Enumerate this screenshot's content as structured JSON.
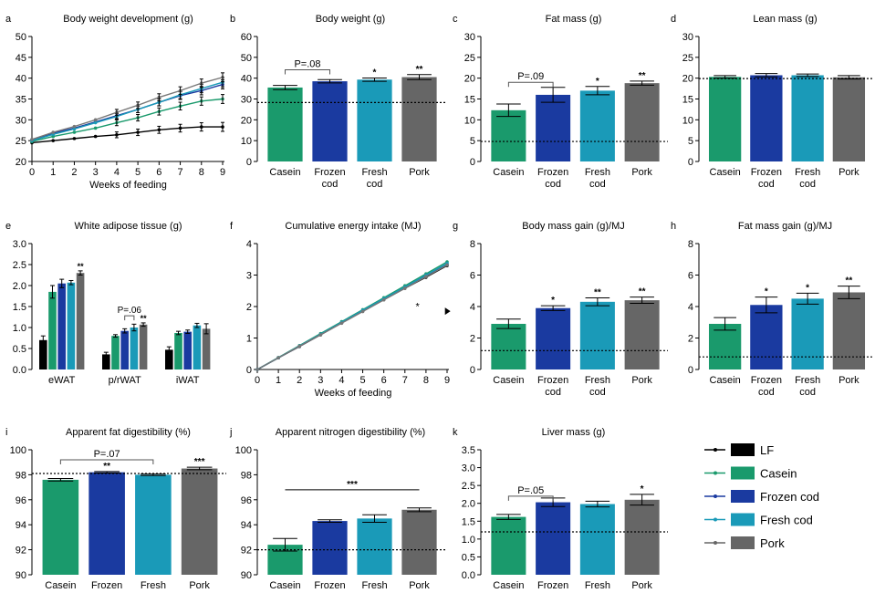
{
  "colors": {
    "lf": "#000000",
    "casein": "#1a9a6c",
    "frozen": "#1a3aa0",
    "fresh": "#1a9ab8",
    "pork": "#666666"
  },
  "chart_data": [
    {
      "id": "a",
      "panel": "a",
      "type": "line",
      "title": "Body weight development (g)",
      "xlabel": "Weeks of feeding",
      "x": [
        0,
        1,
        2,
        3,
        4,
        5,
        6,
        7,
        8,
        9
      ],
      "xticks": [
        "0",
        "1",
        "2",
        "3",
        "4",
        "5",
        "6",
        "7",
        "8",
        "9"
      ],
      "ylim": [
        20,
        50
      ],
      "yticks": [
        "20",
        "25",
        "30",
        "35",
        "40",
        "45",
        "50"
      ],
      "series": [
        {
          "name": "LF",
          "color": "#000000",
          "values": [
            24.5,
            25,
            25.5,
            26,
            26.4,
            27,
            27.6,
            28,
            28.3,
            28.3
          ]
        },
        {
          "name": "Casein",
          "color": "#1a9a6c",
          "values": [
            24.8,
            26,
            27,
            28,
            29.3,
            30.5,
            32,
            33.3,
            34.5,
            35
          ]
        },
        {
          "name": "Frozen cod",
          "color": "#1a3aa0",
          "values": [
            25.2,
            26.8,
            28,
            29.5,
            31,
            32.5,
            34.2,
            35.8,
            37,
            38.5
          ]
        },
        {
          "name": "Fresh cod",
          "color": "#1a9ab8",
          "values": [
            25,
            26.5,
            27.8,
            29.3,
            30.8,
            32.5,
            34.2,
            36,
            37.5,
            39
          ]
        },
        {
          "name": "Pork",
          "color": "#777777",
          "values": [
            25.3,
            27,
            28.4,
            30,
            31.8,
            33.5,
            35.4,
            37,
            38.8,
            40.2
          ]
        }
      ]
    },
    {
      "id": "b",
      "panel": "b",
      "type": "bar",
      "title": "Body weight (g)",
      "categories": [
        "Casein",
        "Frozen\ncod",
        "Fresh\ncod",
        "Pork"
      ],
      "values": [
        35.5,
        38.5,
        39.3,
        40.5
      ],
      "errors": [
        1,
        0.8,
        0.8,
        1.2
      ],
      "colors": [
        "#1a9a6c",
        "#1a3aa0",
        "#1a9ab8",
        "#666666"
      ],
      "ylim": [
        0,
        60
      ],
      "yticks": [
        "0",
        "10",
        "20",
        "30",
        "40",
        "50",
        "60"
      ],
      "reference_line": 28.3,
      "significance": [
        "",
        "",
        "*",
        "**"
      ],
      "comparison": {
        "label": "P=.08",
        "from": 0,
        "to": 1,
        "y": 44
      }
    },
    {
      "id": "c",
      "panel": "c",
      "type": "bar",
      "title": "Fat mass (g)",
      "categories": [
        "Casein",
        "Frozen\ncod",
        "Fresh\ncod",
        "Pork"
      ],
      "values": [
        12.3,
        16,
        17,
        18.8
      ],
      "errors": [
        1.5,
        1.8,
        1,
        0.5
      ],
      "colors": [
        "#1a9a6c",
        "#1a3aa0",
        "#1a9ab8",
        "#666666"
      ],
      "ylim": [
        0,
        30
      ],
      "yticks": [
        "0",
        "5",
        "10",
        "15",
        "20",
        "25",
        "30"
      ],
      "reference_line": 4.8,
      "significance": [
        "",
        "",
        "*",
        "**"
      ],
      "comparison": {
        "label": "P=.09",
        "from": 0,
        "to": 1,
        "y": 19
      }
    },
    {
      "id": "d",
      "panel": "d",
      "type": "bar",
      "title": "Lean mass (g)",
      "categories": [
        "Casein",
        "Frozen\ncod",
        "Fresh\ncod",
        "Pork"
      ],
      "values": [
        20.3,
        20.7,
        20.7,
        20.2
      ],
      "errors": [
        0.3,
        0.4,
        0.3,
        0.4
      ],
      "colors": [
        "#1a9a6c",
        "#1a3aa0",
        "#1a9ab8",
        "#666666"
      ],
      "ylim": [
        0,
        30
      ],
      "yticks": [
        "0",
        "5",
        "10",
        "15",
        "20",
        "25",
        "30"
      ],
      "reference_line": 19.9,
      "significance": [
        "",
        "",
        "",
        ""
      ]
    },
    {
      "id": "e",
      "panel": "e",
      "type": "bar",
      "title": "White adipose tissue (g)",
      "groups": [
        "eWAT",
        "p/rWAT",
        "iWAT"
      ],
      "group_series": [
        "LF",
        "Casein",
        "Frozen cod",
        "Fresh cod",
        "Pork"
      ],
      "colors": [
        "#000000",
        "#1a9a6c",
        "#1a3aa0",
        "#1a9ab8",
        "#666666"
      ],
      "values": [
        [
          0.7,
          1.85,
          2.05,
          2.07,
          2.3
        ],
        [
          0.36,
          0.8,
          0.92,
          1.0,
          1.07
        ],
        [
          0.47,
          0.87,
          0.9,
          1.05,
          0.97
        ]
      ],
      "errors": [
        [
          0.1,
          0.15,
          0.1,
          0.05,
          0.05
        ],
        [
          0.05,
          0.03,
          0.05,
          0.08,
          0.04
        ],
        [
          0.07,
          0.04,
          0.04,
          0.05,
          0.12
        ]
      ],
      "significance": [
        [
          "",
          "",
          "",
          "",
          "**"
        ],
        [
          "",
          "",
          "",
          "",
          "**"
        ],
        [
          "",
          "",
          "",
          "",
          ""
        ]
      ],
      "ylim": [
        0,
        3
      ],
      "yticks": [
        "0.0",
        "0.5",
        "1.0",
        "1.5",
        "2.0",
        "2.5",
        "3.0"
      ],
      "comparison": {
        "label": "P=.06",
        "group": 1,
        "from": 2,
        "to": 3,
        "y": 1.28
      }
    },
    {
      "id": "f",
      "panel": "f",
      "type": "line",
      "title": "Cumulative energy intake (MJ)",
      "xlabel": "Weeks of feeding",
      "x": [
        0,
        1,
        2,
        3,
        4,
        5,
        6,
        7,
        8,
        9
      ],
      "xticks": [
        "0",
        "1",
        "2",
        "3",
        "4",
        "5",
        "6",
        "7",
        "8",
        "9"
      ],
      "ylim": [
        0,
        4
      ],
      "yticks": [
        "0",
        "1",
        "2",
        "3",
        "4"
      ],
      "annotation": "*",
      "series": [
        {
          "name": "LF",
          "color": "#000000",
          "values": [
            0,
            0.37,
            0.73,
            1.1,
            1.48,
            1.85,
            2.22,
            2.58,
            2.93,
            3.3
          ]
        },
        {
          "name": "Casein",
          "color": "#1a9a6c",
          "values": [
            0,
            0.38,
            0.76,
            1.14,
            1.52,
            1.9,
            2.28,
            2.66,
            3.04,
            3.42
          ]
        },
        {
          "name": "Frozen cod",
          "color": "#1a3aa0",
          "values": [
            0,
            0.37,
            0.74,
            1.11,
            1.48,
            1.86,
            2.23,
            2.6,
            2.97,
            3.35
          ]
        },
        {
          "name": "Fresh cod",
          "color": "#1a9ab8",
          "values": [
            0,
            0.37,
            0.75,
            1.12,
            1.5,
            1.88,
            2.25,
            2.62,
            3.0,
            3.37
          ]
        },
        {
          "name": "Pork",
          "color": "#777777",
          "values": [
            0,
            0.37,
            0.74,
            1.1,
            1.47,
            1.84,
            2.21,
            2.58,
            2.95,
            3.32
          ]
        }
      ]
    },
    {
      "id": "g",
      "panel": "g",
      "type": "bar",
      "title": "Body mass gain (g)/MJ",
      "categories": [
        "Casein",
        "Frozen\ncod",
        "Fresh\ncod",
        "Pork"
      ],
      "values": [
        2.9,
        3.9,
        4.3,
        4.4
      ],
      "errors": [
        0.3,
        0.15,
        0.25,
        0.2
      ],
      "colors": [
        "#1a9a6c",
        "#1a3aa0",
        "#1a9ab8",
        "#666666"
      ],
      "ylim": [
        0,
        8
      ],
      "yticks": [
        "0",
        "2",
        "4",
        "6",
        "8"
      ],
      "reference_line": 1.2,
      "significance": [
        "",
        "*",
        "**",
        "**"
      ]
    },
    {
      "id": "h",
      "panel": "h",
      "type": "bar",
      "title": "Fat mass gain (g)/MJ",
      "categories": [
        "Casein",
        "Frozen\ncod",
        "Fresh\ncod",
        "Pork"
      ],
      "values": [
        2.9,
        4.1,
        4.5,
        4.9
      ],
      "errors": [
        0.4,
        0.5,
        0.35,
        0.4
      ],
      "colors": [
        "#1a9a6c",
        "#1a3aa0",
        "#1a9ab8",
        "#666666"
      ],
      "ylim": [
        0,
        8
      ],
      "yticks": [
        "0",
        "2",
        "4",
        "6",
        "8"
      ],
      "reference_line": 0.8,
      "significance": [
        "",
        "*",
        "*",
        "**"
      ]
    },
    {
      "id": "i",
      "panel": "i",
      "type": "bar",
      "title": "Apparent fat digestibility (%)",
      "categories": [
        "Casein",
        "Frozen",
        "Fresh",
        "Pork"
      ],
      "values": [
        97.6,
        98.2,
        98.0,
        98.5
      ],
      "errors": [
        0.1,
        0.06,
        0.06,
        0.1
      ],
      "colors": [
        "#1a9a6c",
        "#1a3aa0",
        "#1a9ab8",
        "#666666"
      ],
      "ylim": [
        90,
        100
      ],
      "yticks": [
        "90",
        "92",
        "94",
        "96",
        "98",
        "100"
      ],
      "reference_line": 98.1,
      "significance": [
        "",
        "**",
        "",
        "***"
      ],
      "comparison": {
        "label": "P=.07",
        "from": 0,
        "to": 2,
        "y": 99.2
      }
    },
    {
      "id": "j",
      "panel": "j",
      "type": "bar",
      "title": "Apparent nitrogen digestibility (%)",
      "categories": [
        "Casein",
        "Frozen",
        "Fresh",
        "Pork"
      ],
      "values": [
        92.4,
        94.3,
        94.5,
        95.2
      ],
      "errors": [
        0.5,
        0.1,
        0.3,
        0.15
      ],
      "colors": [
        "#1a9a6c",
        "#1a3aa0",
        "#1a9ab8",
        "#666666"
      ],
      "ylim": [
        90,
        100
      ],
      "yticks": [
        "90",
        "92",
        "94",
        "96",
        "98",
        "100"
      ],
      "reference_line": 92.0,
      "significance": [
        "",
        "",
        "",
        ""
      ],
      "bracket": {
        "label": "***",
        "from": 0,
        "to": 3,
        "y": 96.8
      }
    },
    {
      "id": "k",
      "panel": "k",
      "type": "bar",
      "title": "Liver mass (g)",
      "categories": [
        "Casein",
        "Frozen",
        "Fresh",
        "Pork"
      ],
      "values": [
        1.62,
        2.03,
        1.98,
        2.1
      ],
      "errors": [
        0.07,
        0.12,
        0.08,
        0.15
      ],
      "colors": [
        "#1a9a6c",
        "#1a3aa0",
        "#1a9ab8",
        "#666666"
      ],
      "ylim": [
        0,
        3.5
      ],
      "yticks": [
        "0.0",
        "0.5",
        "1.0",
        "1.5",
        "2.0",
        "2.5",
        "3.0",
        "3.5"
      ],
      "reference_line": 1.2,
      "significance": [
        "",
        "",
        "",
        "*"
      ],
      "comparison": {
        "label": "P=.05",
        "from": 0,
        "to": 1,
        "y": 2.2
      }
    }
  ],
  "legend": [
    {
      "label": "LF",
      "color": "#000000"
    },
    {
      "label": "Casein",
      "color": "#1a9a6c"
    },
    {
      "label": "Frozen cod",
      "color": "#1a3aa0"
    },
    {
      "label": "Fresh cod",
      "color": "#1a9ab8"
    },
    {
      "label": "Pork",
      "color": "#666666"
    }
  ]
}
